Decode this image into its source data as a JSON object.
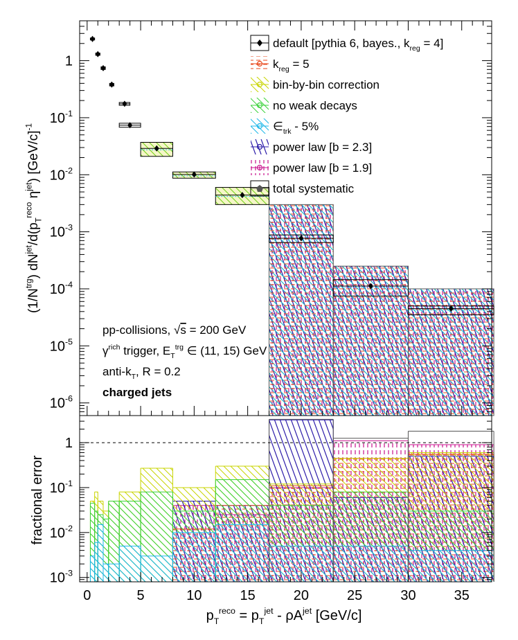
{
  "chart_data": [
    {
      "type": "scatter",
      "panel": "top",
      "title": "",
      "ylabel": {
        "parts": [
          [
            "(1/N",
            "n"
          ],
          [
            "trg",
            "sup"
          ],
          [
            ") dN",
            "n"
          ],
          [
            "jet",
            "sup"
          ],
          [
            "/d(p",
            "n"
          ],
          [
            "T",
            "sub"
          ],
          [
            "reco",
            "sup"
          ],
          [
            " η",
            "n"
          ],
          [
            "jet",
            "sup"
          ],
          [
            ") [GeV/c]",
            "n"
          ],
          [
            "-1",
            "sup"
          ]
        ]
      },
      "yscale": "log",
      "ylim": [
        6e-07,
        5.0
      ],
      "xlim": [
        -0.7,
        37.8
      ],
      "yticks": [
        {
          "v": 1e-06,
          "b": "10",
          "e": "-6"
        },
        {
          "v": 1e-05,
          "b": "10",
          "e": "-5"
        },
        {
          "v": 0.0001,
          "b": "10",
          "e": "-4"
        },
        {
          "v": 0.001,
          "b": "10",
          "e": "-3"
        },
        {
          "v": 0.01,
          "b": "10",
          "e": "-2"
        },
        {
          "v": 0.1,
          "b": "10",
          "e": "-1"
        },
        {
          "v": 1,
          "b": "1",
          "e": ""
        }
      ],
      "points": [
        {
          "x": 0.5,
          "y": 2.4,
          "xlo": 0.3,
          "xhi": 0.7,
          "syslo": 2.3,
          "syshi": 2.5
        },
        {
          "x": 1.0,
          "y": 1.3,
          "xlo": 0.8,
          "xhi": 1.2,
          "syslo": 1.24,
          "syshi": 1.36
        },
        {
          "x": 1.5,
          "y": 0.74,
          "xlo": 1.3,
          "xhi": 1.7,
          "syslo": 0.7,
          "syshi": 0.78
        },
        {
          "x": 2.3,
          "y": 0.38,
          "xlo": 2.1,
          "xhi": 2.5,
          "syslo": 0.36,
          "syshi": 0.4
        },
        {
          "x": 3.5,
          "y": 0.175,
          "xlo": 3.0,
          "xhi": 4.0,
          "syslo": 0.165,
          "syshi": 0.185
        },
        {
          "x": 4.0,
          "y": 0.074,
          "xlo": 3.0,
          "xhi": 5.0,
          "syslo": 0.068,
          "syshi": 0.08
        },
        {
          "x": 6.5,
          "y": 0.029,
          "xlo": 5.0,
          "xhi": 8.0,
          "syslo": 0.021,
          "syshi": 0.037
        },
        {
          "x": 10.0,
          "y": 0.0101,
          "xlo": 8.0,
          "xhi": 12.0,
          "syslo": 0.0087,
          "syshi": 0.0112
        },
        {
          "x": 14.5,
          "y": 0.0044,
          "xlo": 12.0,
          "xhi": 17.0,
          "syslo": 0.003,
          "syshi": 0.006
        },
        {
          "x": 20.0,
          "y": 0.00077,
          "xlo": 17.0,
          "xhi": 23.0,
          "syslo": 0.00065,
          "syshi": 0.00088,
          "band": [
            6e-07,
            0.003
          ]
        },
        {
          "x": 26.5,
          "y": 0.000112,
          "xlo": 23.0,
          "xhi": 30.0,
          "syslo": 7.5e-05,
          "syshi": 0.000145,
          "band": [
            6e-07,
            0.00025
          ]
        },
        {
          "x": 34.0,
          "y": 4.5e-05,
          "xlo": 30.0,
          "xhi": 38.0,
          "syslo": 3.5e-05,
          "syshi": 5e-05,
          "band": [
            6e-07,
            0.0001
          ]
        }
      ],
      "legend_position": "top-right",
      "legend": [
        {
          "parts": [
            [
              "default [pythia 6, bayes., k",
              "n"
            ],
            [
              "reg",
              "sub"
            ],
            [
              " = 4]",
              "n"
            ]
          ],
          "color": "#000000",
          "marker": "diamond",
          "pattern": "none"
        },
        {
          "parts": [
            [
              "k",
              "n"
            ],
            [
              "reg",
              "sub"
            ],
            [
              " = 5",
              "n"
            ]
          ],
          "color": "#e8461a",
          "marker": "circle",
          "pattern": "horiz"
        },
        {
          "parts": [
            [
              "bin-by-bin correction",
              "n"
            ]
          ],
          "color": "#c8d400",
          "marker": "circle",
          "pattern": "diagdown"
        },
        {
          "parts": [
            [
              "no weak decays",
              "n"
            ]
          ],
          "color": "#3ad23a",
          "marker": "circle",
          "pattern": "diagdown"
        },
        {
          "parts": [
            [
              "∈",
              "n"
            ],
            [
              "trk",
              "sub"
            ],
            [
              " - 5%",
              "n"
            ]
          ],
          "color": "#1ab6e8",
          "marker": "circle",
          "pattern": "diagdown"
        },
        {
          "parts": [
            [
              "power law [b = 2.3]",
              "n"
            ]
          ],
          "color": "#2a1aa8",
          "marker": "circle",
          "pattern": "diagsteep"
        },
        {
          "parts": [
            [
              "power law [b = 1.9]",
              "n"
            ]
          ],
          "color": "#c8108c",
          "marker": "circle",
          "pattern": "vert"
        },
        {
          "parts": [
            [
              "total systematic",
              "n"
            ]
          ],
          "color": "#555555",
          "marker": "pentagon",
          "pattern": "none"
        }
      ],
      "annotations": [
        {
          "parts": [
            [
              "pp-collisions, ",
              "n"
            ],
            [
              "√",
              "n"
            ],
            [
              "s",
              "over"
            ],
            [
              " = 200 GeV",
              "n"
            ]
          ],
          "bold": false
        },
        {
          "parts": [
            [
              "γ",
              "n"
            ],
            [
              "rich",
              "sup"
            ],
            [
              " trigger, E",
              "n"
            ],
            [
              "T",
              "sub"
            ],
            [
              "trg",
              "sup"
            ],
            [
              " ∈ (11, 15) GeV",
              "n"
            ]
          ],
          "bold": false
        },
        {
          "parts": [
            [
              "anti-k",
              "n"
            ],
            [
              "T",
              "sub"
            ],
            [
              ", R = 0.2",
              "n"
            ]
          ],
          "bold": false
        },
        {
          "parts": [
            [
              "charged jets",
              "n"
            ]
          ],
          "bold": true
        }
      ]
    },
    {
      "type": "area",
      "panel": "bottom",
      "ylabel": "fractional error",
      "yscale": "log",
      "ylim": [
        0.0008,
        4.0
      ],
      "yticks": [
        {
          "v": 0.001,
          "b": "10",
          "e": "-3"
        },
        {
          "v": 0.01,
          "b": "10",
          "e": "-2"
        },
        {
          "v": 0.1,
          "b": "10",
          "e": "-1"
        },
        {
          "v": 1,
          "b": "1",
          "e": ""
        }
      ],
      "reference_line": 1,
      "xlabel": {
        "parts": [
          [
            "p",
            "n"
          ],
          [
            "T",
            "sub"
          ],
          [
            "reco",
            "sup"
          ],
          [
            " = p",
            "n"
          ],
          [
            "T",
            "sub"
          ],
          [
            "jet",
            "sup"
          ],
          [
            " - ρA",
            "n"
          ],
          [
            "jet",
            "sup"
          ],
          [
            " [GeV/c]",
            "n"
          ]
        ]
      },
      "xticks": [
        0,
        5,
        10,
        15,
        20,
        25,
        30,
        35
      ],
      "series": [
        {
          "legend_index": 6,
          "edges": [
            0.3,
            0.7,
            1.0,
            1.5,
            2.0,
            3.0,
            5.0,
            8.0,
            12.0,
            17.0,
            23.0,
            30.0,
            38.0
          ],
          "values": [
            0,
            0,
            0,
            0,
            0,
            0,
            0,
            0.04,
            0.025,
            0.1,
            1.1,
            0.9
          ]
        },
        {
          "legend_index": 5,
          "edges": [
            0.3,
            0.7,
            1.0,
            1.5,
            2.0,
            3.0,
            5.0,
            8.0,
            12.0,
            17.0,
            23.0,
            30.0,
            38.0
          ],
          "values": [
            0,
            0,
            0,
            0,
            0,
            0,
            0,
            0.05,
            0.04,
            3.2,
            0.06,
            0.5
          ]
        },
        {
          "legend_index": 1,
          "edges": [
            0.3,
            0.7,
            1.0,
            1.5,
            2.0,
            3.0,
            5.0,
            8.0,
            12.0,
            17.0,
            23.0,
            30.0,
            38.0
          ],
          "values": [
            0,
            0,
            0,
            0,
            0,
            0,
            0,
            0.012,
            0.04,
            0.11,
            0.45,
            0.55
          ]
        },
        {
          "legend_index": 2,
          "edges": [
            0.3,
            0.7,
            1.0,
            1.5,
            2.0,
            3.0,
            5.0,
            8.0,
            12.0,
            17.0,
            23.0,
            30.0,
            38.0
          ],
          "values": [
            0.05,
            0.08,
            0.05,
            0.03,
            0.05,
            0.08,
            0.27,
            0.1,
            0.3,
            0.12,
            0.45,
            0.6
          ]
        },
        {
          "legend_index": 3,
          "edges": [
            0.3,
            0.7,
            1.0,
            1.5,
            2.0,
            3.0,
            5.0,
            8.0,
            12.0,
            17.0,
            23.0,
            30.0,
            38.0
          ],
          "values": [
            0.045,
            0.03,
            0.025,
            0.02,
            0.05,
            0.05,
            0.08,
            0.03,
            0.15,
            0.04,
            0.08,
            0.03
          ]
        },
        {
          "legend_index": 4,
          "edges": [
            0.3,
            0.7,
            1.0,
            1.5,
            2.0,
            3.0,
            5.0,
            8.0,
            12.0,
            17.0,
            23.0,
            30.0,
            38.0
          ],
          "values": [
            0.003,
            0.006,
            0.015,
            0.002,
            0.002,
            0.005,
            0.003,
            0.01,
            0.015,
            0.005,
            0.005,
            0.004
          ]
        },
        {
          "legend_index": 7,
          "edges": [
            0.3,
            0.7,
            1.0,
            1.5,
            2.0,
            3.0,
            5.0,
            8.0,
            12.0,
            17.0,
            23.0,
            30.0,
            38.0
          ],
          "values": [
            0,
            0,
            0,
            0,
            0,
            0,
            0,
            0,
            0,
            3.3,
            1.25,
            1.8
          ]
        }
      ]
    }
  ]
}
